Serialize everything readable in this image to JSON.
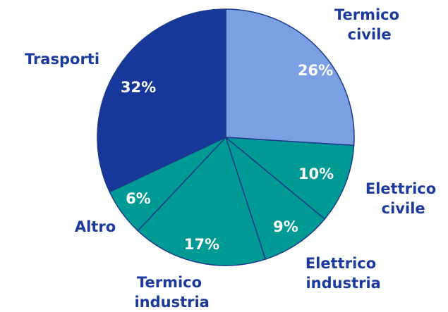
{
  "chart_data": {
    "type": "pie",
    "categories": [
      "Termico civile",
      "Elettrico civile",
      "Elettrico industria",
      "Termico industria",
      "Altro",
      "Trasporti"
    ],
    "values": [
      26,
      10,
      9,
      17,
      6,
      32
    ],
    "value_labels": [
      "26%",
      "10%",
      "9%",
      "17%",
      "6%",
      "32%"
    ],
    "colors": [
      "#7b9fe3",
      "#009a94",
      "#009a94",
      "#009a94",
      "#009a94",
      "#17389a"
    ]
  }
}
